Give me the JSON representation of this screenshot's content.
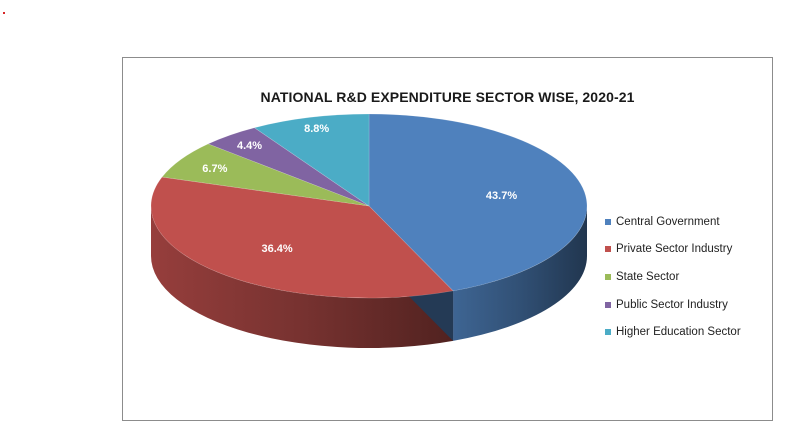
{
  "chart_data": {
    "type": "pie",
    "title": "NATIONAL R&D EXPENDITURE SECTOR WISE, 2020-21",
    "categories": [
      "Central Government",
      "Private Sector Industry",
      "State Sector",
      "Public Sector Industry",
      "Higher Education Sector"
    ],
    "values": [
      43.7,
      36.4,
      6.7,
      4.4,
      8.8
    ],
    "data_labels": [
      "43.7%",
      "36.4%",
      "6.7%",
      "4.4%",
      "8.8%"
    ],
    "colors": [
      "#4f81bd",
      "#c0504d",
      "#9bbb59",
      "#8064a2",
      "#4bacc6"
    ],
    "legend_position": "right",
    "style": "3d"
  }
}
